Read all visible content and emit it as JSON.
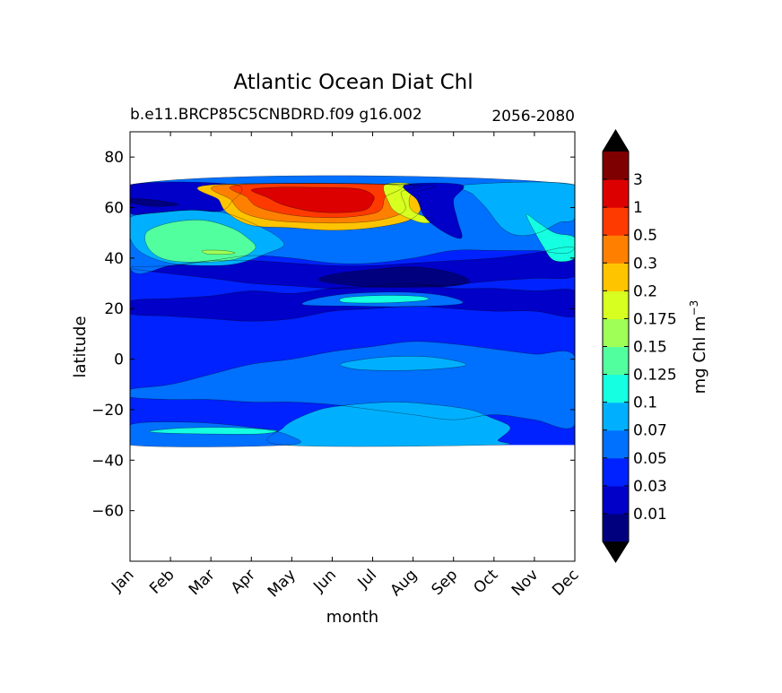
{
  "chart_data": {
    "type": "heatmap",
    "title": "Atlantic Ocean Diat Chl",
    "subtitle_left": "b.e11.BRCP85C5CNBDRD.f09 g16.002",
    "subtitle_right": "2056-2080",
    "xlabel": "month",
    "ylabel": "latitude",
    "x_ticks": [
      "Jan",
      "Feb",
      "Mar",
      "Apr",
      "May",
      "Jun",
      "Jul",
      "Aug",
      "Sep",
      "Oct",
      "Nov",
      "Dec"
    ],
    "y_ticks": [
      80,
      60,
      40,
      20,
      0,
      -20,
      -40,
      -60
    ],
    "ylim": [
      -80,
      90
    ],
    "xlim": [
      0,
      11
    ],
    "data_lat_range": [
      -34,
      69
    ],
    "colorbar": {
      "label": "mg Chl m",
      "label_sup": "−3",
      "tick_labels": [
        "0.01",
        "0.03",
        "0.05",
        "0.07",
        "0.1",
        "0.125",
        "0.15",
        "0.175",
        "0.2",
        "0.3",
        "0.5",
        "1",
        "3"
      ],
      "colors": [
        "#00007f",
        "#0000c8",
        "#0022ff",
        "#0070ff",
        "#00b0ff",
        "#15ffe1",
        "#52ff9e",
        "#9fff56",
        "#d7ff1f",
        "#ffc400",
        "#ff8000",
        "#ff3a00",
        "#dd0000",
        "#7f0000"
      ],
      "under_color": "#000000",
      "over_color": "#000000"
    },
    "regions": [
      {
        "name": "background",
        "level": 2
      },
      {
        "name": "equatorial-band",
        "level": 3
      },
      {
        "name": "south-tropical-patch",
        "level": 4
      },
      {
        "name": "equator-summer-patch",
        "level": 4
      },
      {
        "name": "south-edge-winter",
        "level": 3
      },
      {
        "name": "south-edge-feb-mar",
        "level": 5
      },
      {
        "name": "north-10-25-band",
        "level": 1
      },
      {
        "name": "north-20-band",
        "level": 3
      },
      {
        "name": "north-20-band-center",
        "level": 5
      },
      {
        "name": "subtropical-gyre",
        "level": 1
      },
      {
        "name": "gyre-core",
        "level": 0
      },
      {
        "name": "mid-lat-band",
        "level": 3
      },
      {
        "name": "mid-lat-spring",
        "level": 4
      },
      {
        "name": "mid-lat-spring-core",
        "level": 6
      },
      {
        "name": "mid-lat-spring-inner",
        "level": 7
      },
      {
        "name": "north-fall",
        "level": 4
      },
      {
        "name": "north-fall-core",
        "level": 5
      },
      {
        "name": "north-edge-dark",
        "level": 1
      },
      {
        "name": "north-edge-dark-core",
        "level": 0
      },
      {
        "name": "bloom-level-9",
        "level": 9
      },
      {
        "name": "bloom-level-10",
        "level": 10
      },
      {
        "name": "bloom-level-11",
        "level": 11
      },
      {
        "name": "bloom-level-12",
        "level": 12
      },
      {
        "name": "jul-bloom-tail",
        "level": 8
      },
      {
        "name": "aug-north-dark",
        "level": 1
      }
    ]
  }
}
